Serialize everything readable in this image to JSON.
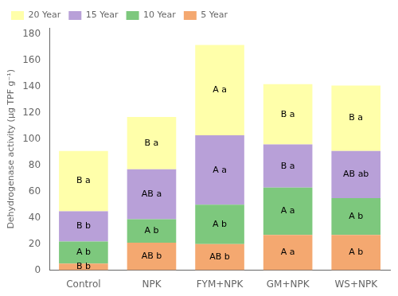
{
  "chart_data": {
    "type": "bar",
    "categories": [
      "Control",
      "NPK",
      "FYM+NPK",
      "GM+NPK",
      "WS+NPK"
    ],
    "series": [
      {
        "name": "5 Year",
        "color": "#F4A870",
        "values": [
          5,
          21,
          20,
          27,
          27
        ]
      },
      {
        "name": "10 Year",
        "color": "#7DC87D",
        "values": [
          17,
          18,
          30,
          36,
          28
        ]
      },
      {
        "name": "15 Year",
        "color": "#B8A0D8",
        "values": [
          23,
          38,
          53,
          33,
          36
        ]
      },
      {
        "name": "20 Year",
        "color": "#FFFFAA",
        "values": [
          46,
          40,
          69,
          46,
          50
        ]
      }
    ],
    "stacked": true,
    "y_label": "Dehydrogenase activity (μg TPF g⁻¹)",
    "ylim": [
      0,
      185
    ],
    "yticks": [
      0,
      20,
      40,
      60,
      80,
      100,
      120,
      140,
      160,
      180
    ],
    "grid": false,
    "legend": "upper left",
    "annotations": [
      {
        "category": "Control",
        "series": "5 Year",
        "text": "B b"
      },
      {
        "category": "Control",
        "series": "10 Year",
        "text": "A b"
      },
      {
        "category": "Control",
        "series": "15 Year",
        "text": "B b"
      },
      {
        "category": "Control",
        "series": "20 Year",
        "text": "B a"
      },
      {
        "category": "NPK",
        "series": "5 Year",
        "text": "AB b"
      },
      {
        "category": "NPK",
        "series": "10 Year",
        "text": "A b"
      },
      {
        "category": "NPK",
        "series": "15 Year",
        "text": "AB a"
      },
      {
        "category": "NPK",
        "series": "20 Year",
        "text": "B a"
      },
      {
        "category": "FYM+NPK",
        "series": "5 Year",
        "text": "AB b"
      },
      {
        "category": "FYM+NPK",
        "series": "10 Year",
        "text": "A b"
      },
      {
        "category": "FYM+NPK",
        "series": "15 Year",
        "text": "A a"
      },
      {
        "category": "FYM+NPK",
        "series": "20 Year",
        "text": "A a"
      },
      {
        "category": "GM+NPK",
        "series": "5 Year",
        "text": "A a"
      },
      {
        "category": "GM+NPK",
        "series": "10 Year",
        "text": "A a"
      },
      {
        "category": "GM+NPK",
        "series": "15 Year",
        "text": "B a"
      },
      {
        "category": "GM+NPK",
        "series": "20 Year",
        "text": "B a"
      },
      {
        "category": "WS+NPK",
        "series": "5 Year",
        "text": "A b"
      },
      {
        "category": "WS+NPK",
        "series": "10 Year",
        "text": "A b"
      },
      {
        "category": "WS+NPK",
        "series": "15 Year",
        "text": "AB ab"
      },
      {
        "category": "WS+NPK",
        "series": "20 Year",
        "text": "B a"
      }
    ]
  }
}
